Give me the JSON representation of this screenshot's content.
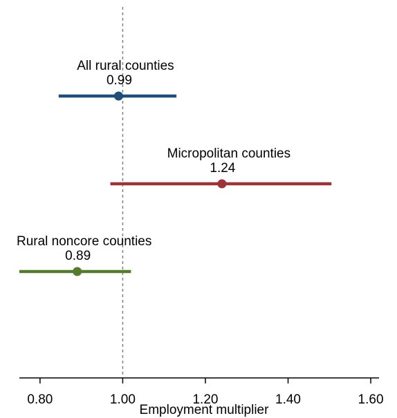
{
  "chart_data": {
    "type": "scatter",
    "xlabel": "Employment multiplier",
    "xlim": [
      0.75,
      1.62
    ],
    "xticks": [
      0.8,
      1.0,
      1.2,
      1.4,
      1.6
    ],
    "xtick_labels": [
      "0.80",
      "1.00",
      "1.20",
      "1.40",
      "1.60"
    ],
    "reference_line": 1.0,
    "grid": false,
    "legend": "none",
    "series": [
      {
        "name": "All rural counties",
        "value": 0.99,
        "value_label": "0.99",
        "ci": [
          0.845,
          1.13
        ],
        "color": "#1f4e79"
      },
      {
        "name": "Micropolitan counties",
        "value": 1.24,
        "value_label": "1.24",
        "ci": [
          0.97,
          1.505
        ],
        "color": "#9b3339"
      },
      {
        "name": "Rural noncore counties",
        "value": 0.89,
        "value_label": "0.89",
        "ci": [
          0.75,
          1.02
        ],
        "color": "#567a2e"
      }
    ]
  }
}
